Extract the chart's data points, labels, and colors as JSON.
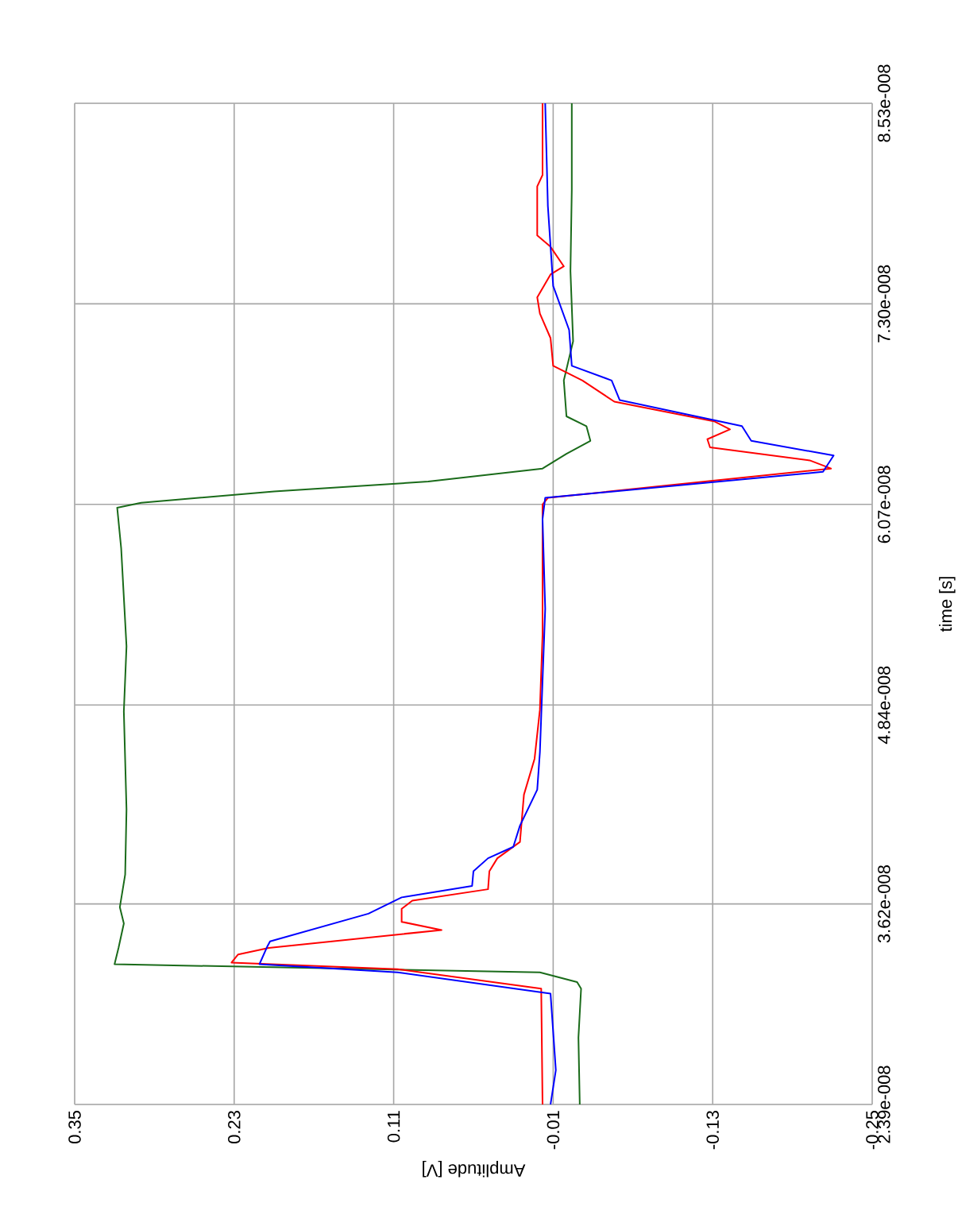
{
  "chart_data": {
    "type": "line",
    "xlabel": "Amplitude [V]",
    "ylabel": "time [s]",
    "ylim": [
      2.39e-08,
      8.53e-08
    ],
    "yticks": [
      {
        "value": 2.39e-08,
        "label": "2.39e-008"
      },
      {
        "value": 3.62e-08,
        "label": "3.62e-008"
      },
      {
        "value": 4.84e-08,
        "label": "4.84e-008"
      },
      {
        "value": 6.07e-08,
        "label": "6.07e-008"
      },
      {
        "value": 7.3e-08,
        "label": "7.30e-008"
      },
      {
        "value": 8.53e-08,
        "label": "8.53e-008"
      }
    ],
    "xlim": [
      0.35,
      -0.25
    ],
    "xticks": [
      {
        "value": 0.35,
        "label": "0.35"
      },
      {
        "value": 0.23,
        "label": "0.23"
      },
      {
        "value": 0.11,
        "label": "0.11"
      },
      {
        "value": -0.01,
        "label": "-0.01"
      },
      {
        "value": -0.13,
        "label": "-0.13"
      },
      {
        "value": -0.25,
        "label": "-0.25"
      }
    ],
    "grid": true,
    "series": [
      {
        "color": "#1a6b1a",
        "values": [
          2.39e-08,
          2.8e-08,
          3.1e-08,
          3.14e-08,
          3.2e-08,
          3.25e-08,
          3.35e-08,
          3.5e-08,
          3.6e-08,
          3.8e-08,
          4.2e-08,
          4.8e-08,
          5.2e-08,
          5.8e-08,
          6.05e-08,
          6.08e-08,
          6.15e-08,
          6.21e-08,
          6.29e-08,
          6.38e-08,
          6.46e-08,
          6.55e-08,
          6.61e-08,
          6.83e-08,
          7.07e-08,
          7.5e-08,
          8e-08,
          8.53e-08
        ],
        "x": [
          -0.03,
          -0.029,
          -0.031,
          -0.028,
          0.0,
          0.32,
          0.317,
          0.313,
          0.316,
          0.312,
          0.311,
          0.313,
          0.311,
          0.315,
          0.318,
          0.3,
          0.2,
          0.084,
          -0.002,
          -0.02,
          -0.038,
          -0.035,
          -0.02,
          -0.018,
          -0.025,
          -0.023,
          -0.024,
          -0.024
        ]
      },
      {
        "color": "#ff0000",
        "values": [
          2.39e-08,
          3.1e-08,
          3.22e-08,
          3.26e-08,
          3.31e-08,
          3.35e-08,
          3.46e-08,
          3.51e-08,
          3.59e-08,
          3.64e-08,
          3.71e-08,
          3.82e-08,
          3.9e-08,
          4e-08,
          4.29e-08,
          4.51e-08,
          4.81e-08,
          5.27e-08,
          6.07e-08,
          6.11e-08,
          6.29e-08,
          6.34e-08,
          6.42e-08,
          6.47e-08,
          6.53e-08,
          6.58e-08,
          6.7e-08,
          6.83e-08,
          6.92e-08,
          7.09e-08,
          7.24e-08,
          7.34e-08,
          7.48e-08,
          7.53e-08,
          7.65e-08,
          7.72e-08,
          8.02e-08,
          8.09e-08,
          8.53e-08
        ],
        "x": [
          -0.002,
          -0.001,
          0.107,
          0.232,
          0.227,
          0.204,
          0.074,
          0.104,
          0.104,
          0.096,
          0.039,
          0.038,
          0.032,
          0.015,
          0.012,
          0.004,
          0.0,
          -0.002,
          -0.002,
          -0.006,
          -0.219,
          -0.203,
          -0.128,
          -0.126,
          -0.143,
          -0.131,
          -0.056,
          -0.032,
          -0.01,
          -0.008,
          0.0,
          0.002,
          -0.008,
          -0.018,
          -0.008,
          0.002,
          0.002,
          -0.002,
          -0.002
        ]
      },
      {
        "color": "#0000ff",
        "values": [
          2.39e-08,
          2.6e-08,
          3.07e-08,
          3.2e-08,
          3.25e-08,
          3.36e-08,
          3.39e-08,
          3.56e-08,
          3.66e-08,
          3.73e-08,
          3.82e-08,
          3.9e-08,
          3.97e-08,
          4.1e-08,
          4.32e-08,
          4.55e-08,
          5.43e-08,
          5.98e-08,
          6.11e-08,
          6.27e-08,
          6.37e-08,
          6.46e-08,
          6.55e-08,
          6.71e-08,
          6.83e-08,
          6.92e-08,
          7.14e-08,
          7.41e-08,
          7.9e-08,
          8.53e-08
        ],
        "x": [
          -0.008,
          -0.012,
          -0.008,
          0.107,
          0.211,
          0.205,
          0.203,
          0.129,
          0.104,
          0.051,
          0.05,
          0.039,
          0.02,
          0.015,
          0.002,
          0.0,
          -0.004,
          -0.002,
          -0.004,
          -0.213,
          -0.221,
          -0.159,
          -0.152,
          -0.06,
          -0.054,
          -0.024,
          -0.022,
          -0.01,
          -0.006,
          -0.004
        ]
      }
    ]
  }
}
